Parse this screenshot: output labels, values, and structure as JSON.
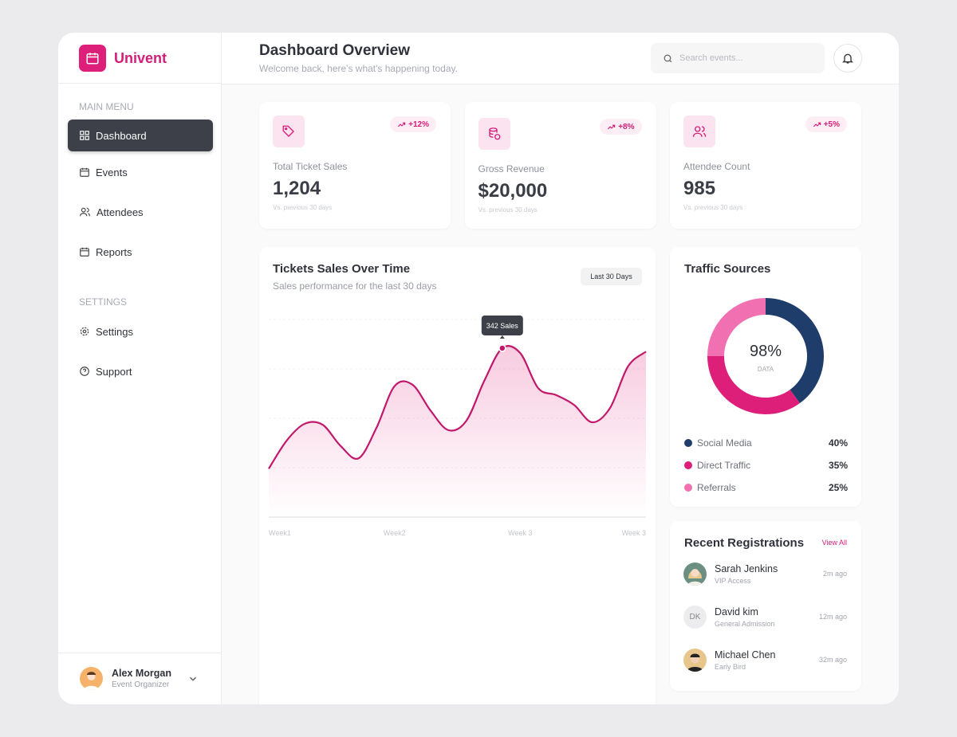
{
  "sidebar": {
    "brand": "Univent",
    "main_menu_title": "MAIN MENU",
    "main_menu": [
      "Dashboard",
      "Events",
      "Attendees",
      "Reports"
    ],
    "settings_title": "SETTINGS",
    "settings_menu": [
      "Settings",
      "Support"
    ],
    "user": {
      "name": "Alex Morgan",
      "role": "Event Organizer"
    }
  },
  "header": {
    "title": "Dashboard Overview",
    "subtitle": "Welcome back, here's what's happening today.",
    "search_placeholder": "Search events..."
  },
  "stats": [
    {
      "label": "Total Ticket Sales",
      "value": "1,204",
      "change": "+12%",
      "note": "Vs. previous 30 days"
    },
    {
      "label": "Gross Revenue",
      "value": "$20,000",
      "change": "+8%",
      "note": "Vs. previous 30 days"
    },
    {
      "label": "Attendee Count",
      "value": "985",
      "change": "+5%",
      "note": "Vs. previous 30 days"
    }
  ],
  "sales_chart": {
    "type": "line",
    "title": "Tickets Sales Over Time",
    "subtitle": "Sales performance for the last 30 days",
    "range_button": "Last 30 Days",
    "x_labels": [
      "Week1",
      "Week2",
      "Week 3",
      "Week 3"
    ],
    "values": [
      98,
      155,
      189,
      187,
      144,
      119,
      181,
      265,
      268,
      216,
      176,
      195,
      276,
      342,
      332,
      261,
      247,
      227,
      192,
      221,
      305,
      335
    ],
    "value_labels": [
      null,
      null,
      null,
      null,
      null,
      null,
      null,
      null,
      null,
      null,
      null,
      null,
      null,
      "342 Sales",
      null,
      null,
      null,
      null,
      null,
      null,
      null,
      null
    ],
    "color": "#c2186b",
    "ylim": [
      0,
      400
    ],
    "yticks": [
      0,
      100,
      200,
      300,
      400
    ],
    "grid": true
  },
  "traffic": {
    "type": "pie",
    "title": "Traffic Sources",
    "center_label": "98%",
    "center_sublabel": "DATA",
    "categories": [
      "Social Media",
      "Direct Traffic",
      "Referrals"
    ],
    "values": [
      40,
      35,
      25
    ],
    "value_labels": [
      "40%",
      "35%",
      "25%"
    ],
    "colors": [
      "#1e3d6b",
      "#de1f7a",
      "#f070b2"
    ]
  },
  "registrations": {
    "title": "Recent Registrations",
    "action": "View All",
    "items": [
      {
        "name": "Sarah Jenkins",
        "ticket": "VIP Access",
        "time": "2m ago"
      },
      {
        "name": "David kim",
        "ticket": "General Admission",
        "time": "12m ago",
        "initials": "DK"
      },
      {
        "name": "Michael Chen",
        "ticket": "Early Bird",
        "time": "32m ago"
      }
    ]
  }
}
